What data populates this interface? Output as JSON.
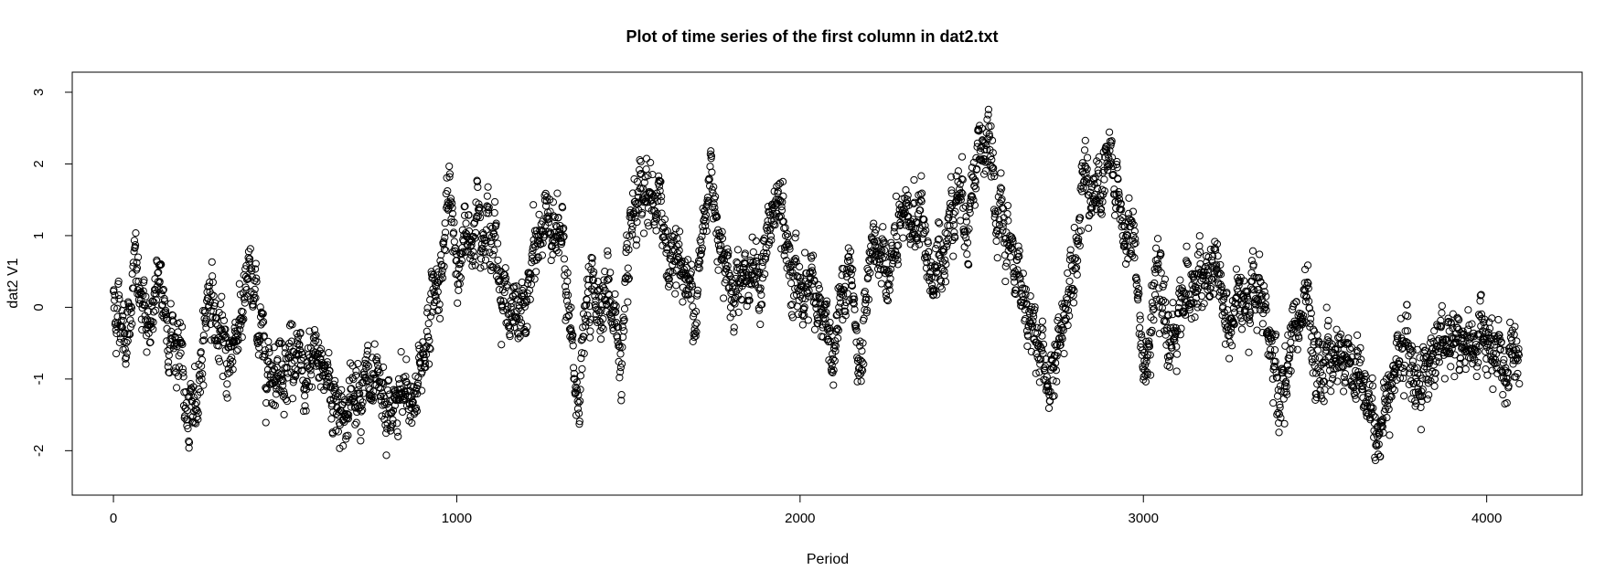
{
  "chart_data": {
    "type": "scatter",
    "title": "Plot of time series of the first column in dat2.txt",
    "xlabel": "Period",
    "ylabel": "dat2 V1",
    "xlim": [
      -120,
      4278
    ],
    "ylim": [
      -2.62,
      3.28
    ],
    "xticks": [
      0,
      1000,
      2000,
      3000,
      4000
    ],
    "yticks": [
      -2,
      -1,
      0,
      1,
      2,
      3
    ],
    "grid": false,
    "point_style": "open-circle",
    "series": [
      {
        "n_points": 4096,
        "trend_knots": [
          [
            0,
            0.1
          ],
          [
            40,
            -0.3
          ],
          [
            60,
            0.6
          ],
          [
            90,
            -0.3
          ],
          [
            130,
            0.2
          ],
          [
            170,
            -0.3
          ],
          [
            200,
            -0.8
          ],
          [
            220,
            -1.9
          ],
          [
            250,
            -0.9
          ],
          [
            280,
            0.4
          ],
          [
            310,
            -0.6
          ],
          [
            340,
            -0.7
          ],
          [
            370,
            0.0
          ],
          [
            400,
            0.3
          ],
          [
            440,
            -0.6
          ],
          [
            480,
            -0.8
          ],
          [
            520,
            -0.6
          ],
          [
            560,
            -1.2
          ],
          [
            600,
            -0.7
          ],
          [
            640,
            -1.2
          ],
          [
            680,
            -1.5
          ],
          [
            720,
            -0.9
          ],
          [
            760,
            -1.4
          ],
          [
            800,
            -1.6
          ],
          [
            840,
            -1.3
          ],
          [
            880,
            -1.2
          ],
          [
            910,
            -0.4
          ],
          [
            950,
            0.5
          ],
          [
            980,
            1.4
          ],
          [
            1000,
            0.6
          ],
          [
            1040,
            1.0
          ],
          [
            1060,
            1.6
          ],
          [
            1090,
            1.2
          ],
          [
            1130,
            0.4
          ],
          [
            1180,
            -0.4
          ],
          [
            1220,
            0.5
          ],
          [
            1250,
            1.1
          ],
          [
            1280,
            1.4
          ],
          [
            1310,
            0.7
          ],
          [
            1330,
            -0.5
          ],
          [
            1350,
            -1.3
          ],
          [
            1380,
            0.0
          ],
          [
            1420,
            0.3
          ],
          [
            1460,
            0.0
          ],
          [
            1480,
            -0.9
          ],
          [
            1510,
            1.0
          ],
          [
            1540,
            1.3
          ],
          [
            1580,
            1.5
          ],
          [
            1620,
            0.8
          ],
          [
            1650,
            0.7
          ],
          [
            1680,
            0.1
          ],
          [
            1710,
            0.6
          ],
          [
            1740,
            1.9
          ],
          [
            1770,
            1.0
          ],
          [
            1800,
            0.3
          ],
          [
            1840,
            0.6
          ],
          [
            1880,
            0.3
          ],
          [
            1900,
            0.8
          ],
          [
            1940,
            1.5
          ],
          [
            1970,
            0.4
          ],
          [
            2000,
            0.3
          ],
          [
            2040,
            0.4
          ],
          [
            2070,
            -0.3
          ],
          [
            2100,
            -0.9
          ],
          [
            2140,
            0.8
          ],
          [
            2170,
            -0.9
          ],
          [
            2190,
            -0.4
          ],
          [
            2220,
            0.8
          ],
          [
            2260,
            0.5
          ],
          [
            2290,
            0.9
          ],
          [
            2330,
            1.3
          ],
          [
            2360,
            1.1
          ],
          [
            2390,
            0.2
          ],
          [
            2420,
            1.0
          ],
          [
            2460,
            1.7
          ],
          [
            2490,
            1.3
          ],
          [
            2520,
            2.3
          ],
          [
            2550,
            2.0
          ],
          [
            2580,
            1.1
          ],
          [
            2620,
            0.6
          ],
          [
            2660,
            0.1
          ],
          [
            2700,
            -0.6
          ],
          [
            2720,
            -1.2
          ],
          [
            2760,
            -0.4
          ],
          [
            2800,
            1.0
          ],
          [
            2830,
            2.0
          ],
          [
            2870,
            1.5
          ],
          [
            2900,
            2.0
          ],
          [
            2940,
            1.2
          ],
          [
            2980,
            0.6
          ],
          [
            3000,
            -0.9
          ],
          [
            3040,
            0.2
          ],
          [
            3080,
            -0.5
          ],
          [
            3120,
            0.3
          ],
          [
            3170,
            0.2
          ],
          [
            3210,
            0.6
          ],
          [
            3250,
            -0.4
          ],
          [
            3300,
            0.2
          ],
          [
            3340,
            0.6
          ],
          [
            3370,
            -0.8
          ],
          [
            3400,
            -1.3
          ],
          [
            3440,
            -0.3
          ],
          [
            3470,
            0.0
          ],
          [
            3500,
            -1.0
          ],
          [
            3540,
            -0.6
          ],
          [
            3580,
            -0.7
          ],
          [
            3620,
            -0.9
          ],
          [
            3660,
            -1.2
          ],
          [
            3690,
            -1.9
          ],
          [
            3720,
            -0.8
          ],
          [
            3760,
            -0.5
          ],
          [
            3800,
            -1.0
          ],
          [
            3840,
            -0.7
          ],
          [
            3880,
            -0.3
          ],
          [
            3920,
            -0.6
          ],
          [
            3960,
            -0.4
          ],
          [
            4000,
            -0.6
          ],
          [
            4040,
            -0.9
          ],
          [
            4095,
            -0.7
          ]
        ],
        "noise_sd": 0.28
      }
    ]
  }
}
